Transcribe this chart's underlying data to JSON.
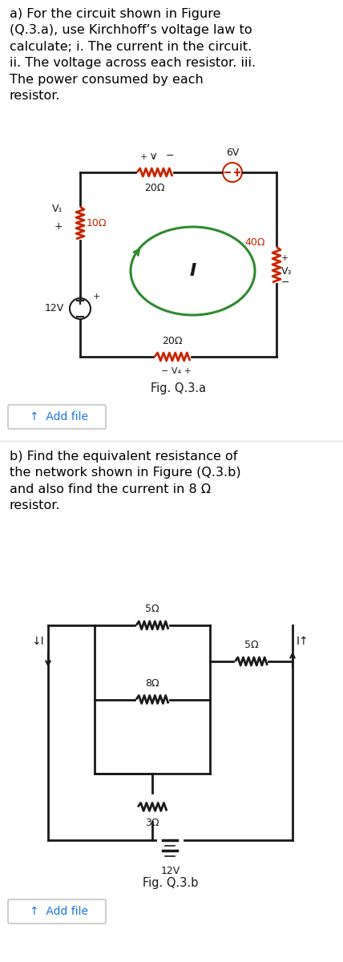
{
  "bg_color": "#ffffff",
  "text_color": "#000000",
  "resistor_color": "#cc2200",
  "wire_color": "#1a1a1a",
  "green_color": "#2e8b2e",
  "blue_color": "#1a73e8",
  "part_a_text": "a) For the circuit shown in Figure\n(Q.3.a), use Kirchhoff’s voltage law to\ncalculate; i. The current in the circuit.\nii. The voltage across each resistor. iii.\nThe power consumed by each\nresistor.",
  "part_b_text": "b) Find the equivalent resistance of\nthe network shown in Figure (Q.3.b)\nand also find the current in 8 Ω\nresistor.",
  "fig_a_label": "Fig. Q.3.a",
  "fig_b_label": "Fig. Q.3.b",
  "add_file_label": "↑  Add file",
  "font_size_body": 11.5,
  "font_size_small": 9
}
